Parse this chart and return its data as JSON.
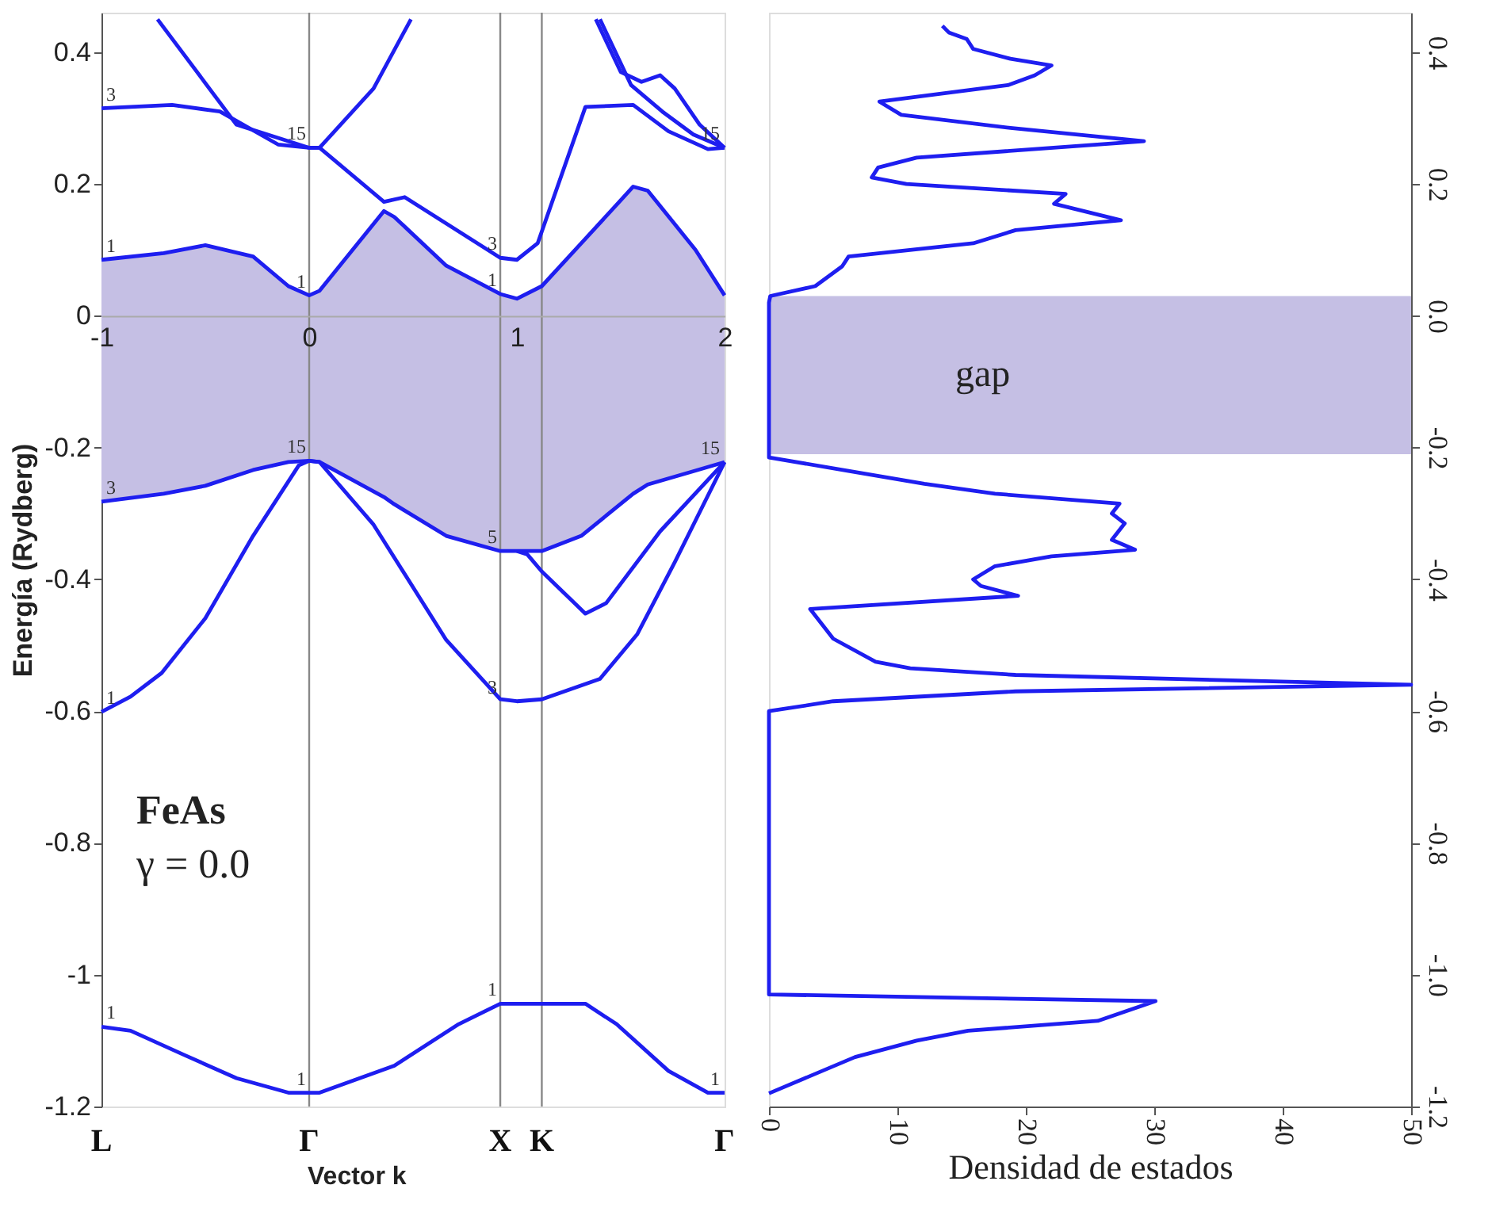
{
  "chart_data": [
    {
      "type": "line",
      "xlabel": "Vector k",
      "ylabel": "Energía (Rydberg)",
      "xlim": [
        -1,
        2
      ],
      "ylim": [
        -1.2,
        0.46
      ],
      "xticks": [
        -1,
        0,
        1,
        2
      ],
      "ref_lines": [
        {
          "axis": "x",
          "value": 0,
          "label": "Γ",
          "color": "#888888"
        },
        {
          "axis": "x",
          "value": 0.92,
          "label": "X",
          "color": "#888888"
        },
        {
          "axis": "x",
          "value": 1.12,
          "label": "K",
          "color": "#888888"
        }
      ],
      "yticks": [
        0.4,
        0.2,
        0,
        -0.2,
        -0.4,
        -0.6,
        -0.8,
        -1,
        -1.2
      ],
      "series": [
        {
          "type": "line",
          "color": "#1e1ef0",
          "x": [
            -1,
            -0.7,
            -0.5,
            -0.27,
            -0.1,
            0,
            0.05,
            0.36,
            0.41,
            0.66,
            0.92,
            1.0,
            1.12,
            1.31,
            1.56,
            1.63,
            1.86,
            2.0
          ],
          "values": [
            0.085,
            0.095,
            0.107,
            0.09,
            0.045,
            0.031,
            0.038,
            0.159,
            0.15,
            0.076,
            0.033,
            0.026,
            0.045,
            0.11,
            0.196,
            0.19,
            0.1,
            0.031
          ],
          "upper": [
            0.085,
            0.095,
            0.107,
            0.09,
            0.045,
            0.031,
            0.038,
            0.159,
            0.15,
            0.076,
            0.033,
            0.026,
            0.045,
            0.11,
            0.196,
            0.19,
            0.1,
            0.031
          ],
          "lower": [
            -0.282,
            -0.27,
            -0.258,
            -0.234,
            -0.222,
            -0.22,
            -0.222,
            -0.275,
            -0.286,
            -0.334,
            -0.357,
            -0.357,
            -0.357,
            -0.334,
            -0.27,
            -0.256,
            -0.235,
            -0.222
          ]
        },
        {
          "type": "line",
          "color": "#1e1ef0",
          "x": [
            -1,
            -0.7,
            -0.5,
            -0.27,
            -0.1,
            0,
            0.05,
            0.36,
            0.41,
            0.66,
            0.92,
            1.0,
            1.12,
            1.31,
            1.56,
            1.63,
            1.86,
            2.0
          ],
          "values": [
            -0.282,
            -0.27,
            -0.258,
            -0.234,
            -0.222,
            -0.22,
            -0.222,
            -0.275,
            -0.286,
            -0.334,
            -0.357,
            -0.357,
            -0.357,
            -0.334,
            -0.27,
            -0.256,
            -0.235,
            -0.222
          ]
        },
        {
          "type": "line",
          "color": "#1e1ef0",
          "x": [
            -1,
            -0.66,
            -0.43,
            -0.15,
            0,
            0.05,
            0.36,
            0.46,
            0.66,
            0.92,
            1.0,
            1.1,
            1.33,
            1.56,
            1.73,
            1.92,
            2.0
          ],
          "values": [
            0.315,
            0.32,
            0.31,
            0.26,
            0.255,
            0.255,
            0.173,
            0.18,
            0.14,
            0.088,
            0.085,
            0.11,
            0.317,
            0.32,
            0.28,
            0.253,
            0.255
          ]
        },
        {
          "type": "line",
          "color": "#1e1ef0",
          "x": [
            -0.73,
            -0.35,
            0,
            0.05,
            0.31,
            0.49
          ],
          "values": [
            0.45,
            0.29,
            0.255,
            0.255,
            0.345,
            0.45
          ]
        },
        {
          "type": "line",
          "color": "#1e1ef0",
          "x": [
            1.38,
            1.5,
            1.6,
            1.69,
            1.76,
            1.88,
            2.0
          ],
          "values": [
            0.45,
            0.37,
            0.355,
            0.365,
            0.345,
            0.29,
            0.255
          ]
        },
        {
          "type": "line",
          "color": "#1e1ef0",
          "x": [
            1.4,
            1.55,
            1.7,
            1.85,
            2.0
          ],
          "values": [
            0.45,
            0.35,
            0.31,
            0.275,
            0.255
          ]
        },
        {
          "type": "line",
          "color": "#1e1ef0",
          "x": [
            -1,
            -0.86,
            -0.71,
            -0.5,
            -0.27,
            -0.05,
            0,
            0.05,
            0.31,
            0.66,
            0.92,
            1.0,
            1.12,
            1.4,
            1.58,
            1.76,
            2.0
          ],
          "values": [
            -0.601,
            -0.578,
            -0.542,
            -0.459,
            -0.334,
            -0.227,
            -0.22,
            -0.222,
            -0.317,
            -0.492,
            -0.582,
            -0.585,
            -0.582,
            -0.551,
            -0.483,
            -0.374,
            -0.222
          ]
        },
        {
          "type": "line",
          "color": "#1e1ef0",
          "x": [
            1.0,
            1.05,
            1.12,
            1.33,
            1.43,
            1.69,
            2.0
          ],
          "values": [
            -0.357,
            -0.362,
            -0.388,
            -0.452,
            -0.436,
            -0.327,
            -0.222
          ]
        },
        {
          "type": "line",
          "color": "#1e1ef0",
          "x": [
            -1,
            -0.86,
            -0.6,
            -0.35,
            -0.1,
            0.05,
            0.41,
            0.72,
            0.92,
            1.33,
            1.48,
            1.73,
            1.92,
            2.0
          ],
          "values": [
            -1.079,
            -1.085,
            -1.122,
            -1.157,
            -1.179,
            -1.179,
            -1.138,
            -1.075,
            -1.044,
            -1.044,
            -1.075,
            -1.146,
            -1.179,
            -1.179
          ]
        }
      ],
      "annotations": [
        "FeAs",
        "γ = 0.0",
        "L",
        "Γ",
        {
          "text": "3",
          "x": -1,
          "y": 0.315
        },
        {
          "text": "1",
          "x": -1,
          "y": 0.085
        },
        {
          "text": "15",
          "x": 0,
          "y": 0.255
        },
        {
          "text": "1",
          "x": 0,
          "y": 0.031
        },
        {
          "text": "3",
          "x": 0.92,
          "y": 0.088
        },
        {
          "text": "1",
          "x": 0.92,
          "y": 0.033
        },
        {
          "text": "15",
          "x": 2,
          "y": 0.255
        },
        {
          "text": "15",
          "x": 0,
          "y": -0.22
        },
        {
          "text": "3",
          "x": -1,
          "y": -0.282
        },
        {
          "text": "5",
          "x": 0.92,
          "y": -0.357
        },
        {
          "text": "15",
          "x": 2,
          "y": -0.222
        },
        {
          "text": "1",
          "x": -1,
          "y": -0.601
        },
        {
          "text": "3",
          "x": 0.92,
          "y": -0.585
        },
        {
          "text": "1",
          "x": -1,
          "y": -1.079
        },
        {
          "text": "1",
          "x": 0,
          "y": -1.179
        },
        {
          "text": "1",
          "x": 0.92,
          "y": -1.044
        },
        {
          "text": "1",
          "x": 2,
          "y": -1.179
        }
      ]
    },
    {
      "type": "line",
      "xlabel": "Densidad de estados",
      "xlim": [
        0,
        50
      ],
      "ylim": [
        -1.2,
        0.46
      ],
      "xticks": [
        0,
        10,
        20,
        30,
        40,
        50
      ],
      "yticks": [
        0.4,
        0.2,
        {
          "value": 0,
          "label": "0.0"
        },
        -0.2,
        -0.4,
        -0.6,
        -0.8,
        {
          "value": -1,
          "label": "-1.0"
        },
        -1.2
      ],
      "series": [
        {
          "color": "#1e1ef0",
          "x": [
            13.5,
            14.0,
            15.4,
            15.9,
            18.8,
            22.0,
            20.7,
            18.6,
            8.6,
            10.3,
            18.8,
            29.2,
            11.5,
            8.5,
            8.0,
            10.7,
            23.1,
            22.2,
            27.4,
            19.2,
            15.9,
            6.2,
            5.7,
            3.6,
            0.1,
            0,
            0,
            6.1,
            12.1,
            17.6,
            27.3,
            26.7,
            27.7,
            26.7,
            28.5,
            22.0,
            17.6,
            15.9,
            16.5,
            19.4,
            3.2,
            5.0,
            8.3,
            11.0,
            19.2,
            50,
            19.2,
            5.0,
            0,
            0,
            30.1,
            25.6,
            15.5,
            11.5,
            6.7,
            0
          ],
          "values": [
            0.44,
            0.43,
            0.42,
            0.405,
            0.39,
            0.38,
            0.365,
            0.35,
            0.325,
            0.305,
            0.285,
            0.265,
            0.24,
            0.225,
            0.21,
            0.2,
            0.185,
            0.17,
            0.145,
            0.13,
            0.11,
            0.09,
            0.075,
            0.045,
            0.03,
            0.02,
            -0.215,
            -0.235,
            -0.255,
            -0.27,
            -0.285,
            -0.3,
            -0.315,
            -0.34,
            -0.355,
            -0.365,
            -0.38,
            -0.4,
            -0.41,
            -0.425,
            -0.445,
            -0.49,
            -0.525,
            -0.535,
            -0.545,
            -0.56,
            -0.57,
            -0.585,
            -0.6,
            -1.03,
            -1.04,
            -1.07,
            -1.085,
            -1.1,
            -1.125,
            -1.18
          ]
        }
      ],
      "bands": [
        {
          "axis": "y",
          "from": -0.21,
          "to": 0.03,
          "label": "gap",
          "color": "#c5bfe4"
        }
      ]
    }
  ]
}
